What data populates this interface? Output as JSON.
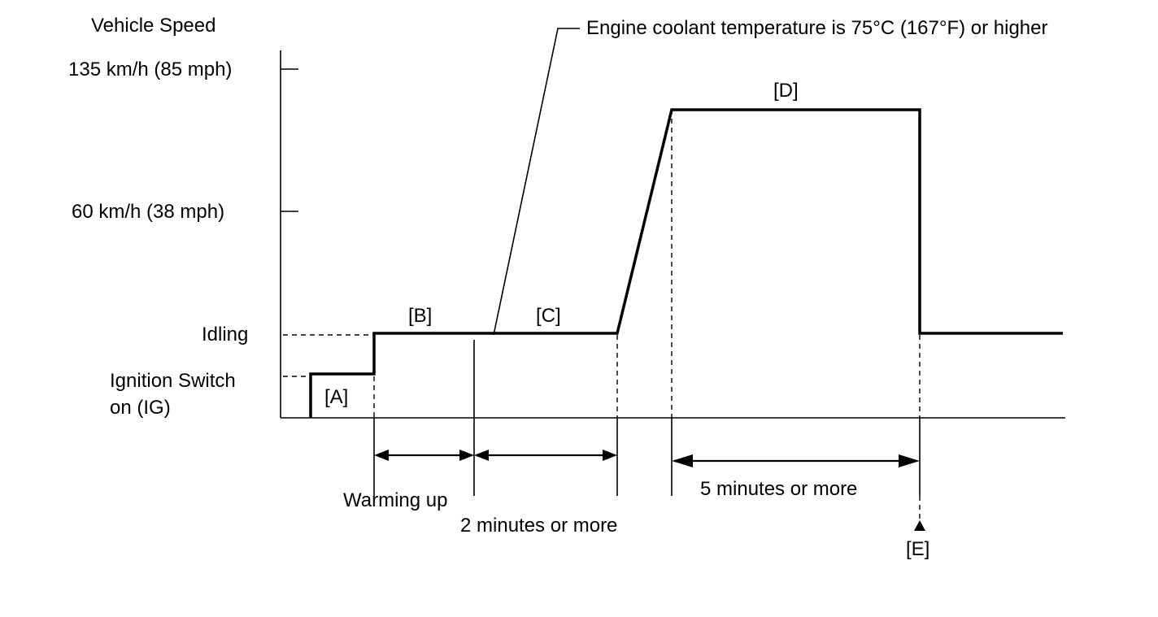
{
  "y_axis": {
    "title": "Vehicle Speed",
    "levels": {
      "high": "135 km/h (85 mph)",
      "mid": "60 km/h (38 mph)",
      "idling": "Idling",
      "ignition_line1": "Ignition Switch",
      "ignition_line2": "on (IG)"
    }
  },
  "phases": {
    "a": "[A]",
    "b": "[B]",
    "c": "[C]",
    "d": "[D]",
    "e": "[E]"
  },
  "annotations": {
    "coolant": "Engine coolant temperature is 75°C (167°F) or higher"
  },
  "durations": {
    "warming_up": "Warming up",
    "two_minutes": "2 minutes or more",
    "five_minutes": "5 minutes or more"
  }
}
